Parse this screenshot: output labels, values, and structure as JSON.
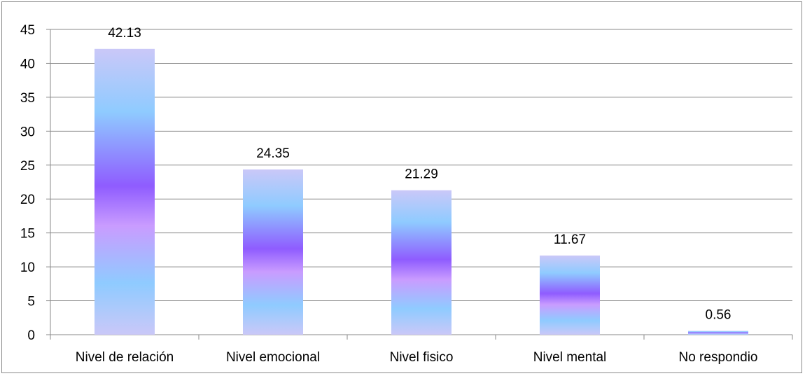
{
  "chart_data": {
    "type": "bar",
    "categories": [
      "Nivel de relación",
      "Nivel emocional",
      "Nivel fisico",
      "Nivel mental",
      "No respondio"
    ],
    "values": [
      42.13,
      24.35,
      21.29,
      11.67,
      0.56
    ],
    "data_labels": [
      "42.13",
      "24.35",
      "21.29",
      "11.67",
      "0.56"
    ],
    "title": "",
    "xlabel": "",
    "ylabel": "",
    "ylim": [
      0,
      45
    ],
    "yticks": [
      0,
      5,
      10,
      15,
      20,
      25,
      30,
      35,
      40,
      45
    ],
    "grid": true,
    "legend": "none",
    "colors": {
      "bar_light": "#c8c8fa",
      "bar_cyan": "#8fcaff",
      "bar_purple": "#8f5cff",
      "bar_lilac": "#c99cff",
      "gridline": "#8a8a8a",
      "axis": "#8a8a8a"
    }
  }
}
